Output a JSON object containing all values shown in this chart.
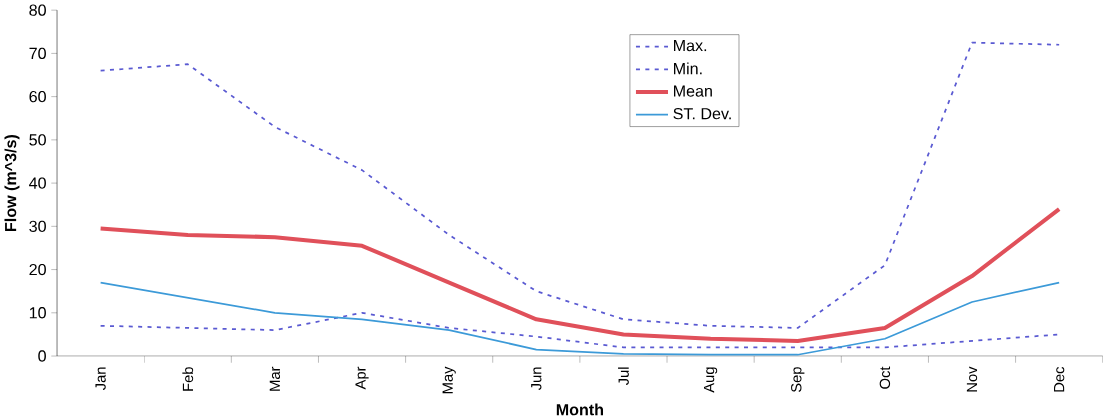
{
  "chart_data": {
    "type": "line",
    "xlabel": "Month",
    "ylabel": "Flow (m^3/s)",
    "categories": [
      "Jan",
      "Feb",
      "Mar",
      "Apr",
      "May",
      "Jun",
      "Jul",
      "Aug",
      "Sep",
      "Oct",
      "Nov",
      "Dec"
    ],
    "ylim": [
      0,
      80
    ],
    "yticks": [
      0,
      10,
      20,
      30,
      40,
      50,
      60,
      70,
      80
    ],
    "grid": false,
    "legend": "top",
    "marker": "none",
    "series": [
      {
        "name": "Max.",
        "color": "#5a5ad2",
        "line_style": "dashed",
        "values": [
          66,
          67.5,
          53,
          43,
          28,
          15,
          8.5,
          7,
          6.5,
          21,
          72.5,
          72
        ]
      },
      {
        "name": "Min.",
        "color": "#5a5ad2",
        "line_style": "dashed",
        "values": [
          7,
          6.5,
          6,
          10,
          6.5,
          4.5,
          2,
          2,
          2,
          2,
          3.5,
          5
        ]
      },
      {
        "name": "Mean",
        "color": "#e0505a",
        "line_style": "solid",
        "values": [
          29.5,
          28,
          27.5,
          25.5,
          17,
          8.5,
          5,
          4,
          3.5,
          6.5,
          18.5,
          34
        ]
      },
      {
        "name": "ST. Dev.",
        "color": "#3c9ad8",
        "line_style": "solid",
        "values": [
          17,
          13.5,
          10,
          8.5,
          6,
          1.5,
          0.5,
          0.3,
          0.3,
          4,
          12.5,
          17
        ]
      }
    ]
  }
}
